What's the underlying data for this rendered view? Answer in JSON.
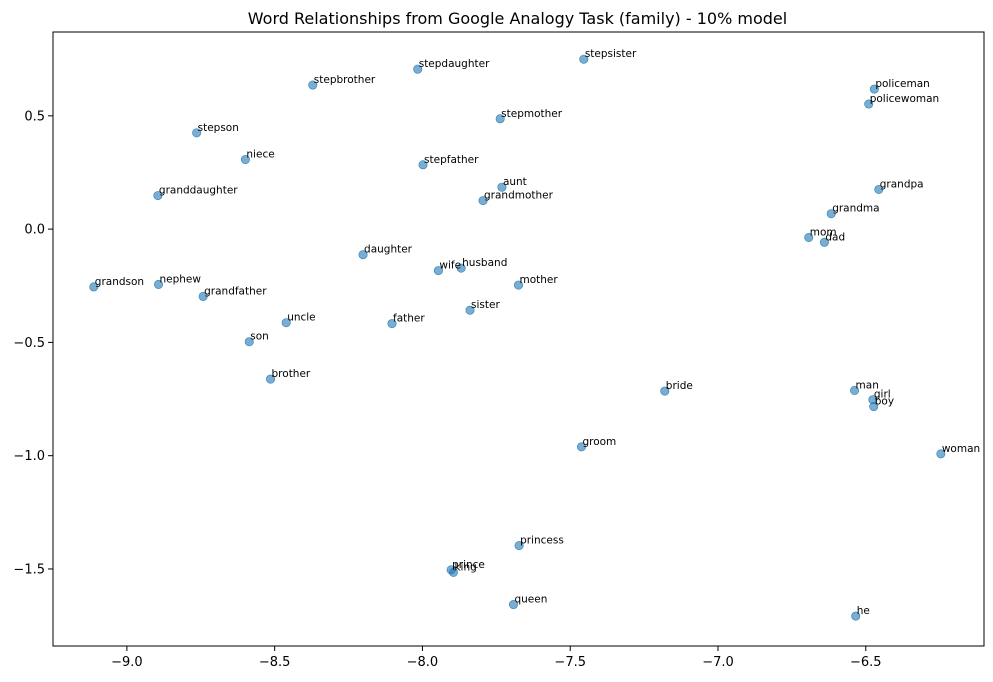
{
  "chart_data": {
    "type": "scatter",
    "title": "Word Relationships from Google Analogy Task (family) - 10% model",
    "xlabel": "",
    "ylabel": "",
    "xlim": [
      -9.25,
      -6.1
    ],
    "ylim": [
      -1.84,
      0.87
    ],
    "grid": false,
    "marker_color": "#1f77b4",
    "marker_alpha": 0.6,
    "x_ticks": [
      -9.0,
      -8.5,
      -8.0,
      -7.5,
      -7.0,
      -6.5
    ],
    "x_tick_labels": [
      "−9.0",
      "−8.5",
      "−8.0",
      "−7.5",
      "−7.0",
      "−6.5"
    ],
    "y_ticks": [
      0.5,
      0.0,
      -0.5,
      -1.0,
      -1.5
    ],
    "y_tick_labels": [
      "0.5",
      "0.0",
      "−0.5",
      "−1.0",
      "−1.5"
    ],
    "points": [
      {
        "label": "stepsister",
        "x": -7.454,
        "y": 0.75
      },
      {
        "label": "stepdaughter",
        "x": -8.016,
        "y": 0.706
      },
      {
        "label": "stepbrother",
        "x": -8.371,
        "y": 0.636
      },
      {
        "label": "policeman",
        "x": -6.471,
        "y": 0.618
      },
      {
        "label": "policewoman",
        "x": -6.49,
        "y": 0.552
      },
      {
        "label": "stepmother",
        "x": -7.737,
        "y": 0.487
      },
      {
        "label": "stepson",
        "x": -8.764,
        "y": 0.425
      },
      {
        "label": "niece",
        "x": -8.599,
        "y": 0.307
      },
      {
        "label": "stepfather",
        "x": -7.998,
        "y": 0.284
      },
      {
        "label": "aunt",
        "x": -7.731,
        "y": 0.185
      },
      {
        "label": "grandpa",
        "x": -6.456,
        "y": 0.175
      },
      {
        "label": "granddaughter",
        "x": -8.895,
        "y": 0.148
      },
      {
        "label": "grandmother",
        "x": -7.795,
        "y": 0.126
      },
      {
        "label": "grandma",
        "x": -6.617,
        "y": 0.068
      },
      {
        "label": "mom",
        "x": -6.693,
        "y": -0.037
      },
      {
        "label": "dad",
        "x": -6.64,
        "y": -0.058
      },
      {
        "label": "daughter",
        "x": -8.201,
        "y": -0.113
      },
      {
        "label": "husband",
        "x": -7.869,
        "y": -0.172
      },
      {
        "label": "wife",
        "x": -7.946,
        "y": -0.183
      },
      {
        "label": "mother",
        "x": -7.675,
        "y": -0.247
      },
      {
        "label": "grandson",
        "x": -9.112,
        "y": -0.255
      },
      {
        "label": "nephew",
        "x": -8.893,
        "y": -0.244
      },
      {
        "label": "grandfather",
        "x": -8.742,
        "y": -0.297
      },
      {
        "label": "sister",
        "x": -7.839,
        "y": -0.358
      },
      {
        "label": "uncle",
        "x": -8.461,
        "y": -0.413
      },
      {
        "label": "father",
        "x": -8.103,
        "y": -0.417
      },
      {
        "label": "son",
        "x": -8.586,
        "y": -0.497
      },
      {
        "label": "brother",
        "x": -8.514,
        "y": -0.662
      },
      {
        "label": "bride",
        "x": -7.18,
        "y": -0.715
      },
      {
        "label": "man",
        "x": -6.538,
        "y": -0.712
      },
      {
        "label": "girl",
        "x": -6.476,
        "y": -0.753
      },
      {
        "label": "boy",
        "x": -6.473,
        "y": -0.783
      },
      {
        "label": "groom",
        "x": -7.462,
        "y": -0.961
      },
      {
        "label": "woman",
        "x": -6.246,
        "y": -0.992
      },
      {
        "label": "princess",
        "x": -7.673,
        "y": -1.397
      },
      {
        "label": "prince",
        "x": -7.903,
        "y": -1.504
      },
      {
        "label": "king",
        "x": -7.895,
        "y": -1.515
      },
      {
        "label": "queen",
        "x": -7.692,
        "y": -1.657
      },
      {
        "label": "he",
        "x": -6.534,
        "y": -1.708
      }
    ]
  }
}
